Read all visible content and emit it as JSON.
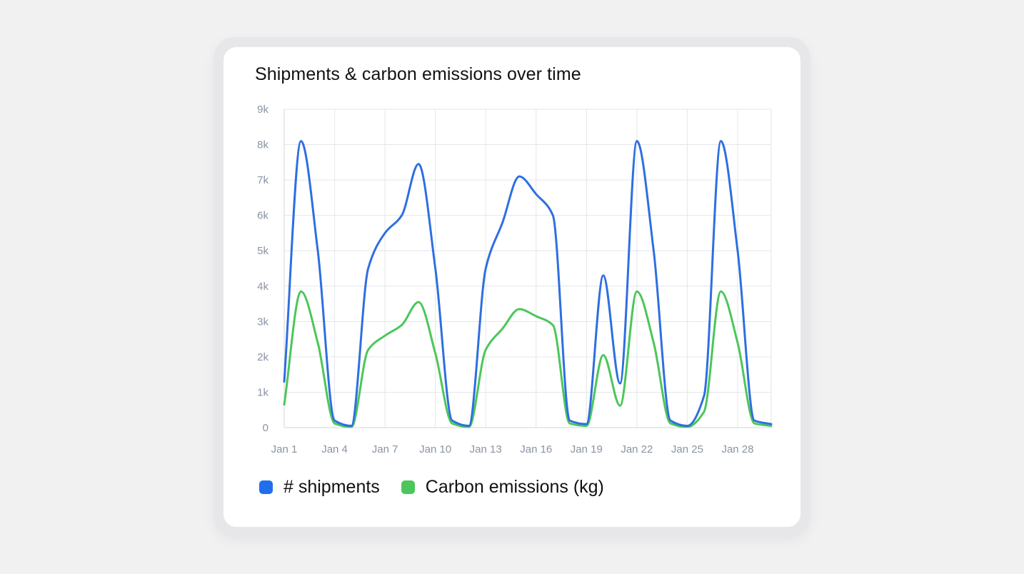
{
  "chart_data": {
    "type": "line",
    "title": "Shipments & carbon emissions over time",
    "x": [
      1,
      2,
      3,
      4,
      5,
      6,
      7,
      8,
      9,
      10,
      11,
      12,
      13,
      14,
      15,
      16,
      17,
      18,
      19,
      20,
      21,
      22,
      23,
      24,
      25,
      26,
      27,
      28,
      29,
      30
    ],
    "x_tick_labels": [
      "Jan 1",
      "Jan 4",
      "Jan 7",
      "Jan 10",
      "Jan 13",
      "Jan 16",
      "Jan 19",
      "Jan 22",
      "Jan 25",
      "Jan 28"
    ],
    "x_tick_values": [
      1,
      4,
      7,
      10,
      13,
      16,
      19,
      22,
      25,
      28
    ],
    "y_tick_labels": [
      "0",
      "1k",
      "2k",
      "3k",
      "4k",
      "5k",
      "6k",
      "7k",
      "8k",
      "9k"
    ],
    "ylim": [
      0,
      9000
    ],
    "grid": true,
    "legend_position": "bottom-left",
    "series": [
      {
        "name": "# shipments",
        "color": "#2e6fe0",
        "values": [
          1300,
          8100,
          5000,
          200,
          50,
          4500,
          5500,
          6000,
          7450,
          4500,
          200,
          50,
          4500,
          5800,
          7100,
          6600,
          6000,
          200,
          100,
          4300,
          1250,
          8100,
          5000,
          200,
          50,
          900,
          8100,
          5000,
          200,
          100
        ]
      },
      {
        "name": "Carbon emissions (kg)",
        "color": "#4cc65a",
        "values": [
          650,
          3850,
          2400,
          120,
          20,
          2200,
          2600,
          2900,
          3550,
          2100,
          120,
          20,
          2200,
          2800,
          3350,
          3150,
          2900,
          120,
          50,
          2050,
          620,
          3850,
          2400,
          120,
          20,
          450,
          3850,
          2400,
          120,
          50
        ]
      }
    ]
  },
  "legend": [
    {
      "label": "# shipments",
      "color": "#1f6feb"
    },
    {
      "label": "Carbon emissions (kg)",
      "color": "#4cc65a"
    }
  ]
}
